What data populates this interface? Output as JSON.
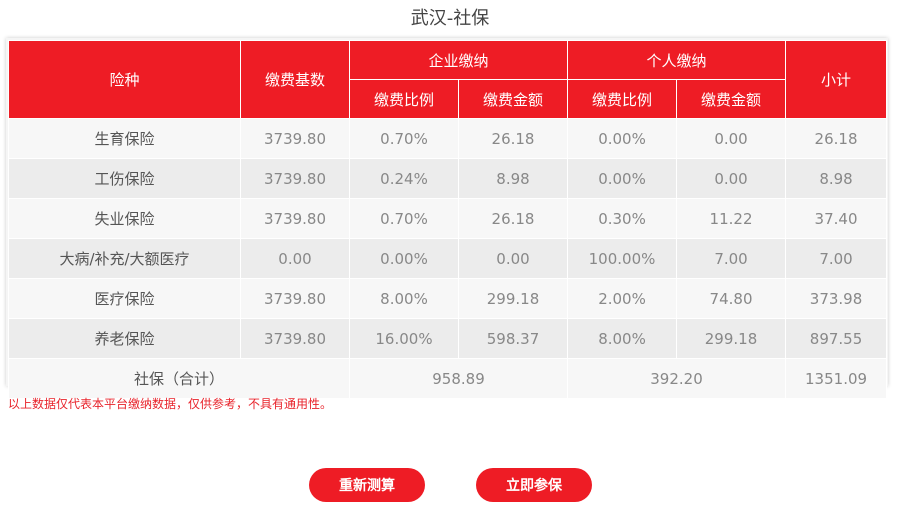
{
  "title": "武汉-社保",
  "table": {
    "headers": {
      "type": "险种",
      "base": "缴费基数",
      "company": "企业缴纳",
      "personal": "个人缴纳",
      "subtotal": "小计",
      "rate": "缴费比例",
      "amount": "缴费金额"
    },
    "rows": [
      [
        "生育保险",
        "3739.80",
        "0.70%",
        "26.18",
        "0.00%",
        "0.00",
        "26.18"
      ],
      [
        "工伤保险",
        "3739.80",
        "0.24%",
        "8.98",
        "0.00%",
        "0.00",
        "8.98"
      ],
      [
        "失业保险",
        "3739.80",
        "0.70%",
        "26.18",
        "0.30%",
        "11.22",
        "37.40"
      ],
      [
        "大病/补充/大额医疗",
        "0.00",
        "0.00%",
        "0.00",
        "100.00%",
        "7.00",
        "7.00"
      ],
      [
        "医疗保险",
        "3739.80",
        "8.00%",
        "299.18",
        "2.00%",
        "74.80",
        "373.98"
      ],
      [
        "养老保险",
        "3739.80",
        "16.00%",
        "598.37",
        "8.00%",
        "299.18",
        "897.55"
      ]
    ],
    "total": {
      "label": "社保（合计）",
      "company": "958.89",
      "personal": "392.20",
      "subtotal": "1351.09"
    }
  },
  "note": "以上数据仅代表本平台缴纳数据，仅供参考，不具有通用性。",
  "buttons": {
    "recalc": "重新测算",
    "enroll": "立即参保"
  },
  "colors": {
    "accent": "#ee1c25"
  }
}
